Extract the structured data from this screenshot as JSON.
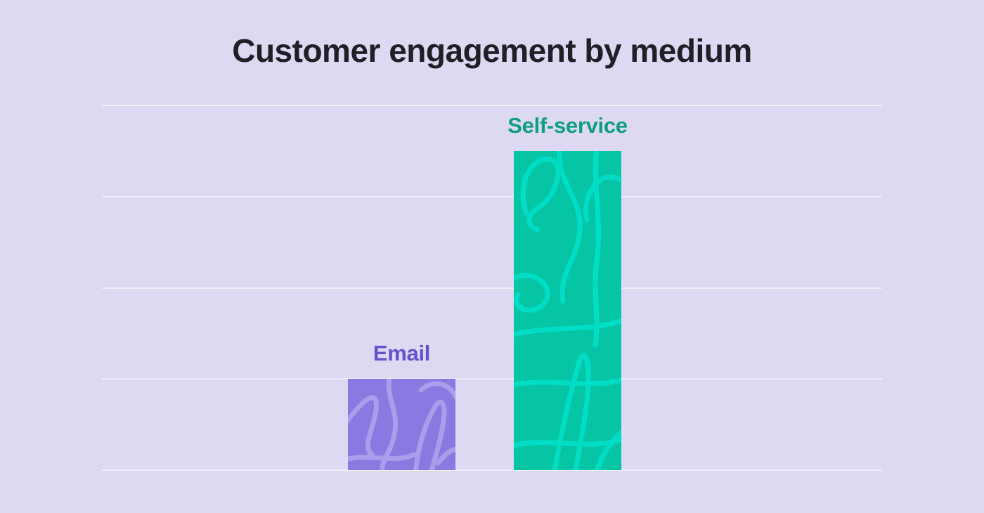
{
  "page": {
    "background_color": "#ddd9f3",
    "title_color": "#211f26",
    "gridline_color": "#f1eefb"
  },
  "chart_data": {
    "type": "bar",
    "title": "Customer engagement by medium",
    "categories": [
      "Email",
      "Self-service"
    ],
    "values": [
      1,
      3.5
    ],
    "ylim": [
      0,
      4
    ],
    "xlabel": "",
    "ylabel": "",
    "y_tick_labels_visible": false,
    "grid": true,
    "gridline_count": 5,
    "legend_position": "none",
    "bar_colors": [
      "#8979e1",
      "#06c5a5"
    ],
    "pattern_colors": [
      "#a99dec",
      "#00ddc6"
    ],
    "label_colors": [
      "#6452c9",
      "#0f9e82"
    ]
  }
}
